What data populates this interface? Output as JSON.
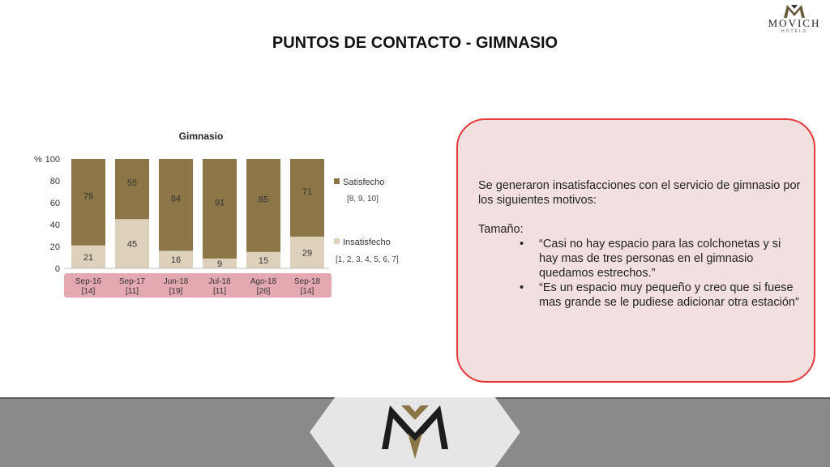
{
  "brand": {
    "name": "MOVICH",
    "sub": "HOTELS"
  },
  "page_title": "PUNTOS DE CONTACTO - GIMNASIO",
  "colors": {
    "satisfecho": "#8c7547",
    "insatisfecho": "#ddd1bc",
    "axis_band": "#e3a8b0",
    "panel_border": "#e33b3b",
    "panel_fill": "#f2dfe0"
  },
  "chart_data": {
    "type": "bar",
    "stacked": true,
    "title": "Gimnasio",
    "ylabel": "%",
    "ylim": [
      0,
      100
    ],
    "yticks": [
      0,
      20,
      40,
      60,
      80,
      100
    ],
    "categories": [
      "Sep-16",
      "Sep-17",
      "Jun-18",
      "Jul-18",
      "Ago-18",
      "Sep-18"
    ],
    "sample_sizes": [
      "[14]",
      "[11]",
      "[19]",
      "[11]",
      "[26]",
      "[14]"
    ],
    "series": [
      {
        "name": "Insatisfecho",
        "values": [
          21,
          45,
          16,
          9,
          15,
          29
        ],
        "note": "[1, 2, 3, 4, 5, 6, 7]"
      },
      {
        "name": "Satisfecho",
        "values": [
          79,
          55,
          84,
          91,
          85,
          71
        ],
        "note": "[8, 9, 10]"
      }
    ],
    "legend": "right"
  },
  "panel": {
    "intro": "Se generaron insatisfacciones con el servicio de gimnasio por los siguientes motivos:",
    "heading": "Tamaño:",
    "quotes": [
      "“Casi no hay espacio para las colchonetas y si hay mas de tres personas en el gimnasio quedamos estrechos.”",
      "“Es un espacio muy pequeño y creo que si fuese mas grande se le pudiese adicionar otra estación”"
    ]
  }
}
